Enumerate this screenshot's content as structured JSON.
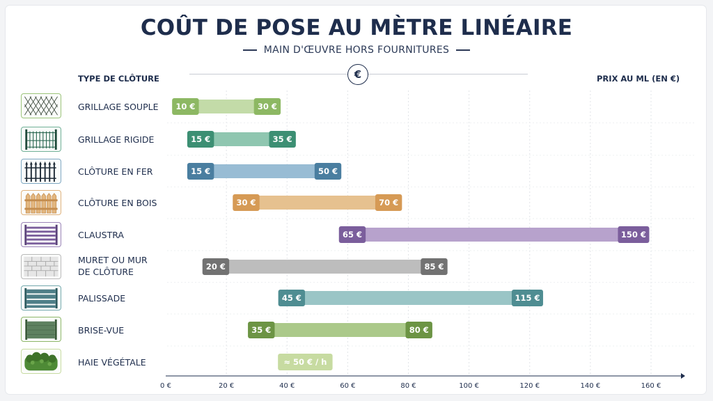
{
  "header": {
    "title": "COÛT DE POSE AU MÈTRE LINÉAIRE",
    "subtitle": "MAIN D'ŒUVRE HORS FOURNITURES",
    "col_left": "TYPE DE CLÔTURE",
    "col_right": "PRIX AU ML (EN €)",
    "euro_symbol": "€"
  },
  "chart_data": {
    "type": "bar",
    "orientation": "horizontal-range",
    "xlim": [
      0,
      160
    ],
    "x_ticks": [
      0,
      20,
      40,
      60,
      80,
      100,
      120,
      140,
      160
    ],
    "x_tick_labels": [
      "0 €",
      "20 €",
      "40 €",
      "60 €",
      "80 €",
      "100 €",
      "120 €",
      "140 €",
      "160 €"
    ],
    "grid": true,
    "rows": [
      {
        "label": "GRILLAGE SOUPLE",
        "min": 10,
        "max": 30,
        "min_label": "10 €",
        "max_label": "30 €",
        "color": "#8db863",
        "bar_color": "#c3dba8",
        "icon": "wire-mesh-icon"
      },
      {
        "label": "GRILLAGE RIGIDE",
        "min": 15,
        "max": 35,
        "min_label": "15 €",
        "max_label": "35 €",
        "color": "#3c8f73",
        "bar_color": "#8fc6b0",
        "icon": "rigid-panel-icon"
      },
      {
        "label": "CLÔTURE EN FER",
        "min": 15,
        "max": 50,
        "min_label": "15 €",
        "max_label": "50 €",
        "color": "#4a7ea0",
        "bar_color": "#98bcd4",
        "icon": "iron-fence-icon"
      },
      {
        "label": "CLÔTURE EN BOIS",
        "min": 30,
        "max": 70,
        "min_label": "30 €",
        "max_label": "70 €",
        "color": "#d69a55",
        "bar_color": "#e6c18f",
        "icon": "wood-fence-icon"
      },
      {
        "label": "CLAUSTRA",
        "min": 65,
        "max": 150,
        "min_label": "65 €",
        "max_label": "150 €",
        "color": "#7b5e9c",
        "bar_color": "#b7a2cc",
        "icon": "claustra-icon"
      },
      {
        "label": "MURET OU MUR\nDE CLÔTURE",
        "min": 20,
        "max": 85,
        "min_label": "20 €",
        "max_label": "85 €",
        "color": "#727272",
        "bar_color": "#bdbdbd",
        "icon": "brick-wall-icon"
      },
      {
        "label": "PALISSADE",
        "min": 45,
        "max": 115,
        "min_label": "45 €",
        "max_label": "115 €",
        "color": "#4f8d92",
        "bar_color": "#9ac5c6",
        "icon": "palisade-icon"
      },
      {
        "label": "BRISE-VUE",
        "min": 35,
        "max": 80,
        "min_label": "35 €",
        "max_label": "80 €",
        "color": "#6c9444",
        "bar_color": "#abc98a",
        "icon": "screen-panel-icon"
      },
      {
        "label": "HAIE VÉGÉTALE",
        "min": 37,
        "max": 55,
        "min_label": "≈ 50 € / h",
        "max_label": "",
        "color": "#c7dba1",
        "bar_color": "#c7dba1",
        "icon": "hedge-icon",
        "single_pill": true
      }
    ]
  }
}
